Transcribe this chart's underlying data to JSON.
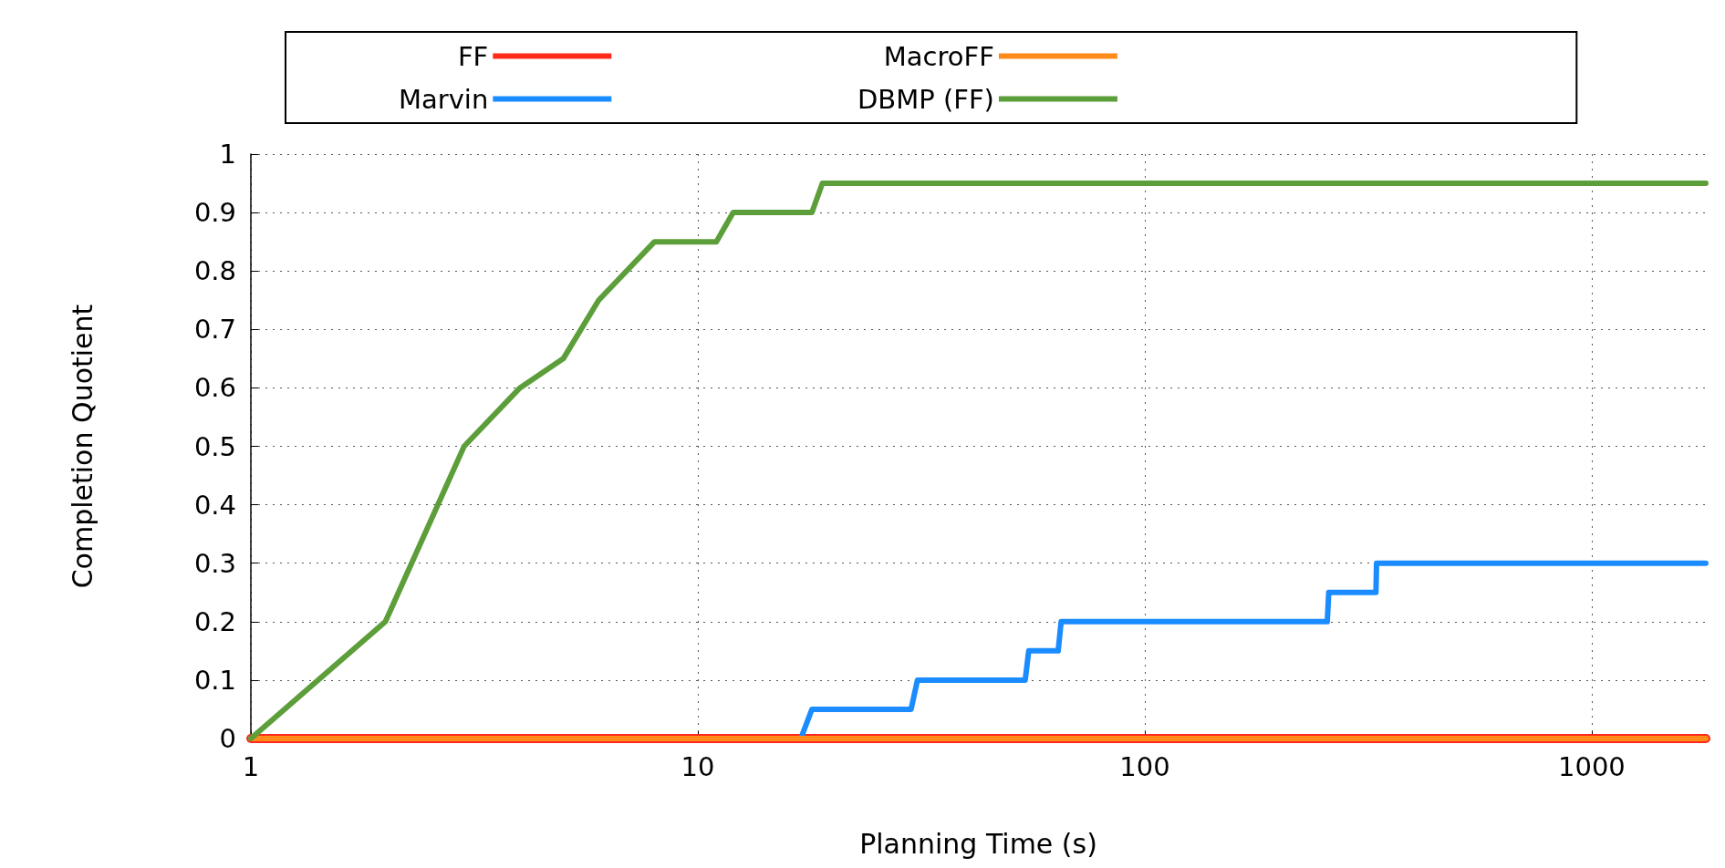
{
  "chart_data": {
    "type": "line",
    "xlabel": "Planning Time (s)",
    "ylabel": "Completion Quotient",
    "log": "x",
    "grid": true,
    "legend": "top",
    "marker": "none",
    "line_style": "solid",
    "xlim": [
      1,
      1800
    ],
    "xticks": [
      1,
      10,
      100,
      1000
    ],
    "ylim": [
      0,
      1
    ],
    "yticks": [
      0,
      0.1,
      0.2,
      0.3,
      0.4,
      0.5,
      0.6,
      0.7,
      0.8,
      0.9,
      1
    ],
    "series": [
      {
        "name": "FF",
        "color": "#ff2a1a",
        "x": [
          1,
          1800
        ],
        "values": [
          0,
          0
        ]
      },
      {
        "name": "Marvin",
        "color": "#1a8cff",
        "x": [
          1,
          17,
          18,
          30,
          31,
          54,
          55,
          64,
          65,
          256,
          258,
          329,
          330,
          1800
        ],
        "values": [
          0,
          0,
          0.05,
          0.05,
          0.1,
          0.1,
          0.15,
          0.15,
          0.2,
          0.2,
          0.25,
          0.25,
          0.3,
          0.3
        ]
      },
      {
        "name": "MacroFF",
        "color": "#ff8c1a",
        "x": [
          1,
          1800
        ],
        "values": [
          0,
          0
        ]
      },
      {
        "name": "DBMP (FF)",
        "color": "#5c9e3a",
        "x": [
          1,
          2,
          3,
          4,
          5,
          6,
          8,
          11,
          12,
          18,
          19,
          1800
        ],
        "values": [
          0,
          0.2,
          0.5,
          0.6,
          0.65,
          0.75,
          0.85,
          0.85,
          0.9,
          0.9,
          0.95,
          0.95
        ]
      }
    ]
  }
}
